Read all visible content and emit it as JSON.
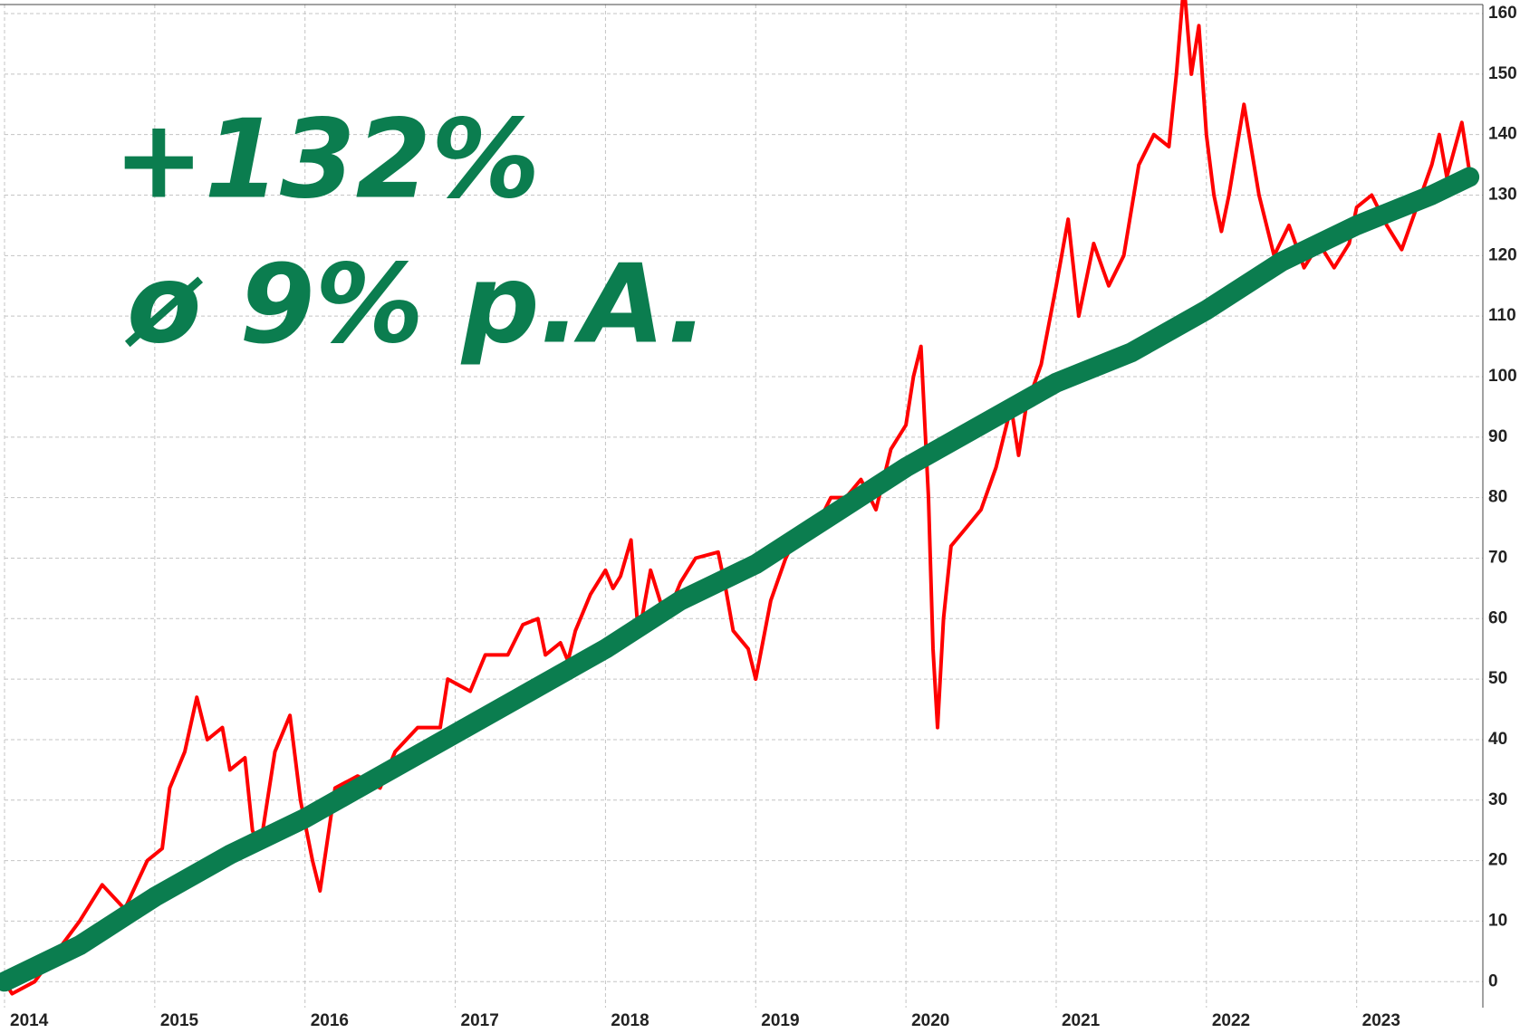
{
  "chart_data": {
    "type": "line",
    "annotations": [
      "+132%",
      "ø 9% p.A."
    ],
    "xlim": [
      2014,
      2023.84
    ],
    "xticks": [
      2014,
      2015,
      2016,
      2017,
      2018,
      2019,
      2020,
      2021,
      2022,
      2023
    ],
    "ylim": [
      -4.3,
      161.5
    ],
    "yticks": [
      0,
      10,
      20,
      30,
      40,
      50,
      60,
      70,
      80,
      90,
      100,
      110,
      120,
      130,
      140,
      150,
      160
    ],
    "grid": true,
    "series": [
      {
        "color": "#ff0000",
        "x": [
          2014.0,
          2014.05,
          2014.2,
          2014.35,
          2014.5,
          2014.65,
          2014.8,
          2014.95,
          2015.05,
          2015.1,
          2015.2,
          2015.28,
          2015.35,
          2015.45,
          2015.5,
          2015.6,
          2015.65,
          2015.7,
          2015.8,
          2015.9,
          2015.97,
          2016.05,
          2016.1,
          2016.2,
          2016.35,
          2016.5,
          2016.6,
          2016.75,
          2016.9,
          2016.95,
          2017.1,
          2017.2,
          2017.35,
          2017.45,
          2017.55,
          2017.6,
          2017.7,
          2017.75,
          2017.8,
          2017.9,
          2018.0,
          2018.05,
          2018.1,
          2018.17,
          2018.22,
          2018.3,
          2018.4,
          2018.5,
          2018.6,
          2018.75,
          2018.8,
          2018.85,
          2018.95,
          2019.0,
          2019.1,
          2019.2,
          2019.3,
          2019.4,
          2019.5,
          2019.6,
          2019.7,
          2019.8,
          2019.9,
          2020.0,
          2020.05,
          2020.1,
          2020.15,
          2020.18,
          2020.21,
          2020.25,
          2020.3,
          2020.4,
          2020.5,
          2020.6,
          2020.7,
          2020.75,
          2020.8,
          2020.9,
          2021.0,
          2021.08,
          2021.15,
          2021.25,
          2021.35,
          2021.45,
          2021.55,
          2021.65,
          2021.75,
          2021.8,
          2021.85,
          2021.9,
          2021.95,
          2022.0,
          2022.05,
          2022.1,
          2022.15,
          2022.25,
          2022.35,
          2022.45,
          2022.55,
          2022.65,
          2022.75,
          2022.85,
          2022.95,
          2023.0,
          2023.1,
          2023.2,
          2023.3,
          2023.4,
          2023.5,
          2023.55,
          2023.6,
          2023.7,
          2023.75
        ],
        "values": [
          0,
          -2,
          0,
          5,
          10,
          16,
          12,
          20,
          22,
          32,
          38,
          47,
          40,
          42,
          35,
          37,
          25,
          22,
          38,
          44,
          30,
          20,
          15,
          32,
          34,
          32,
          38,
          42,
          42,
          50,
          48,
          54,
          54,
          59,
          60,
          54,
          56,
          53,
          58,
          64,
          68,
          65,
          67,
          73,
          57,
          68,
          60,
          66,
          70,
          71,
          65,
          58,
          55,
          50,
          63,
          70,
          75,
          75,
          80,
          80,
          83,
          78,
          88,
          92,
          100,
          105,
          80,
          55,
          42,
          60,
          72,
          75,
          78,
          85,
          95,
          87,
          95,
          102,
          115,
          126,
          110,
          122,
          115,
          120,
          135,
          140,
          138,
          150,
          165,
          150,
          158,
          140,
          130,
          124,
          130,
          145,
          130,
          120,
          125,
          118,
          122,
          118,
          122,
          128,
          130,
          125,
          121,
          128,
          135,
          140,
          133,
          142,
          134
        ]
      },
      {
        "color": "#0b7d4f",
        "x": [
          2014,
          2014.5,
          2015,
          2015.5,
          2016,
          2016.5,
          2017,
          2017.5,
          2018,
          2018.5,
          2019,
          2019.5,
          2020,
          2020.5,
          2021,
          2021.5,
          2022,
          2022.5,
          2023,
          2023.5,
          2023.75
        ],
        "values": [
          0,
          6,
          14,
          21,
          27,
          34,
          41,
          48,
          55,
          63,
          69,
          77,
          85,
          92,
          99,
          104,
          111,
          119,
          125,
          130,
          133
        ]
      }
    ]
  }
}
